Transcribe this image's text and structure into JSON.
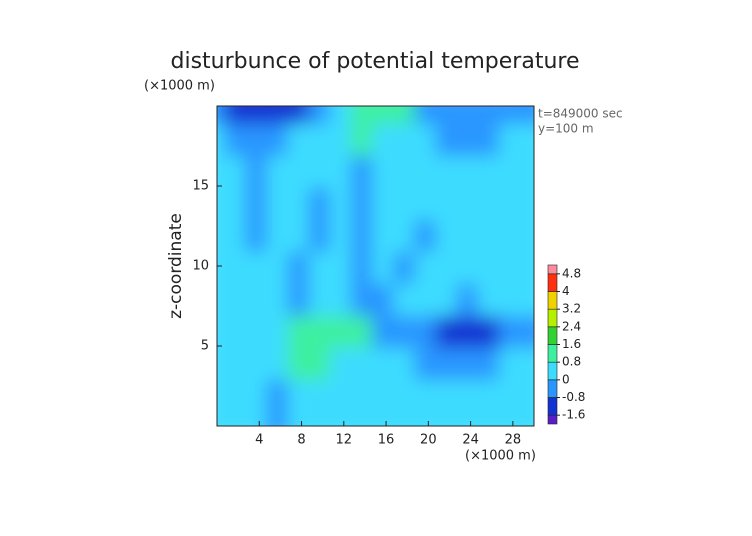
{
  "chart_data": {
    "type": "contour",
    "title": "disturbunce of potential temperature",
    "y_unit": "(×1000 m)",
    "x_unit": "(×1000 m)",
    "ylabel": "z-coordinate",
    "annotations": [
      "t=849000 sec",
      "y=100 m"
    ],
    "xlim": [
      0,
      30
    ],
    "ylim": [
      0,
      20
    ],
    "xticks": [
      4,
      8,
      12,
      16,
      20,
      24,
      28
    ],
    "yticks": [
      5,
      10,
      15
    ],
    "x": [
      1,
      3,
      5,
      7,
      9,
      11,
      13,
      15,
      17,
      19,
      21,
      23,
      25,
      27,
      29
    ],
    "y": [
      19,
      17,
      15,
      13,
      11,
      9,
      7,
      5,
      3,
      1
    ],
    "z": [
      [
        -0.3,
        -0.9,
        -1.3,
        -1.4,
        -1.2,
        -0.6,
        0.6,
        1.2,
        1.3,
        0.9,
        -0.1,
        -0.5,
        -0.7,
        -0.6,
        -0.4
      ],
      [
        0,
        -0.3,
        -0.4,
        -0.2,
        0.1,
        0.2,
        0.4,
        0.9,
        0.5,
        0.1,
        0,
        -0.2,
        -0.3,
        -0.2,
        0
      ],
      [
        0.2,
        0.1,
        -0.2,
        0,
        0.2,
        0.3,
        0.1,
        -0.4,
        0,
        0.2,
        0.2,
        0,
        0.1,
        0.2,
        0.3
      ],
      [
        0.1,
        0.2,
        -0.5,
        0,
        0.2,
        -0.2,
        0.1,
        -0.5,
        0.1,
        0.2,
        0,
        0.1,
        0.2,
        0.1,
        0.2
      ],
      [
        0.2,
        0,
        -0.6,
        0.1,
        0.1,
        -0.3,
        0.2,
        -0.5,
        0.2,
        0,
        -0.1,
        0.2,
        0.1,
        0.2,
        0.3
      ],
      [
        0.1,
        0.2,
        0,
        0.3,
        -0.4,
        0.1,
        0,
        -0.5,
        0,
        -0.2,
        0.2,
        0.1,
        0.2,
        0.1,
        0.2
      ],
      [
        0.2,
        0.1,
        0.2,
        0.3,
        -0.4,
        0.5,
        0.3,
        -0.4,
        -0.6,
        0.1,
        0.2,
        0,
        -0.2,
        0.1,
        0.2
      ],
      [
        0.3,
        0.2,
        0.4,
        0.6,
        0.9,
        1.1,
        1.3,
        1.0,
        -0.8,
        -0.2,
        -0.4,
        -1.0,
        -1.5,
        -1.2,
        -0.3
      ],
      [
        0.2,
        0.3,
        0.1,
        0.6,
        1.3,
        1.0,
        0.6,
        0.3,
        0.1,
        0.2,
        -0.2,
        -0.6,
        -0.5,
        -0.3,
        0.1
      ],
      [
        0.6,
        0.3,
        0.2,
        -0.2,
        0.3,
        0.2,
        0.1,
        0,
        0.1,
        0.2,
        0.1,
        0,
        0.2,
        0.1,
        0.2
      ]
    ],
    "levels": [
      -1.6,
      -0.8,
      0,
      0.8,
      1.6,
      2.4,
      3.2,
      4,
      4.8
    ],
    "colors": [
      "#5a1ec8",
      "#1232d2",
      "#2a96ff",
      "#3cdcff",
      "#3cf0a0",
      "#32d232",
      "#b4f000",
      "#f0d200",
      "#ff3010",
      "#ff8c9a"
    ]
  }
}
